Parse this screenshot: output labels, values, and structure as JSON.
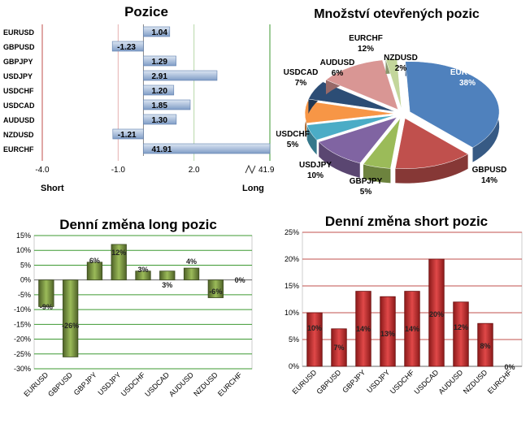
{
  "charts": {
    "colors": {
      "bar_blue_dark": "#7f9cc6",
      "bar_blue_light": "#dce6f2",
      "green_line": "#3d9a32",
      "red_line": "#c0504d",
      "green_bar_dark": "#4f6228",
      "green_bar_light": "#9bbb59",
      "red_bar_dark": "#8b1a1a",
      "red_bar_light": "#e04848"
    }
  },
  "chart_data": [
    {
      "type": "bar",
      "orientation": "horizontal",
      "title": "Pozice",
      "categories": [
        "EURUSD",
        "GBPUSD",
        "GBPJPY",
        "USDJPY",
        "USDCHF",
        "USDCAD",
        "AUDUSD",
        "NZDUSD",
        "EURCHF"
      ],
      "values": [
        1.04,
        -1.23,
        1.29,
        2.91,
        1.2,
        1.85,
        1.3,
        -1.21,
        41.91
      ],
      "value_labels": [
        "1.04",
        "-1.23",
        "1.29",
        "2.91",
        "1.20",
        "1.85",
        "1.30",
        "-1.21",
        "41.91"
      ],
      "x_ticks": [
        "-4.0",
        "-1.0",
        "2.0",
        "41.9"
      ],
      "xlim": [
        -4.0,
        5.0
      ],
      "axis_break_label": "41.9",
      "left_label": "Short",
      "right_label": "Long"
    },
    {
      "type": "pie",
      "title": "Množství otevřených pozic",
      "labels": [
        "EURUSD",
        "GBPUSD",
        "GBPJPY",
        "USDJPY",
        "USDCHF",
        "USDCAD",
        "AUDUSD",
        "EURCHF",
        "NZDUSD"
      ],
      "values": [
        38,
        14,
        5,
        10,
        5,
        7,
        6,
        12,
        2
      ],
      "percent_labels": [
        "38%",
        "14%",
        "5%",
        "10%",
        "5%",
        "7%",
        "6%",
        "12%",
        "2%"
      ],
      "colors": [
        "#4f81bd",
        "#c0504d",
        "#9bbb59",
        "#8064a2",
        "#4bacc6",
        "#f79646",
        "#2c4d75",
        "#d99694",
        "#c3d69b"
      ]
    },
    {
      "type": "bar",
      "title": "Denní změna long pozic",
      "categories": [
        "EURUSD",
        "GBPUSD",
        "GBPJPY",
        "USDJPY",
        "USDCHF",
        "USDCAD",
        "AUDUSD",
        "NZDUSD",
        "EURCHF"
      ],
      "values": [
        -9,
        -26,
        6,
        12,
        3,
        3,
        4,
        -6,
        0
      ],
      "value_labels": [
        "-9%",
        "-26%",
        "6%",
        "12%",
        "3%",
        "3%",
        "4%",
        "-6%",
        "0%"
      ],
      "y_ticks": [
        "15%",
        "10%",
        "5%",
        "0%",
        "-5%",
        "-10%",
        "-15%",
        "-20%",
        "-25%",
        "-30%"
      ],
      "ylim": [
        -30,
        15
      ]
    },
    {
      "type": "bar",
      "title": "Denní změna short pozic",
      "categories": [
        "EURUSD",
        "GBPUSD",
        "GBPJPY",
        "USDJPY",
        "USDCHF",
        "USDCAD",
        "AUDUSD",
        "NZDUSD",
        "EURCHF"
      ],
      "values": [
        10,
        7,
        14,
        13,
        14,
        20,
        12,
        8,
        0
      ],
      "value_labels": [
        "10%",
        "7%",
        "14%",
        "13%",
        "14%",
        "20%",
        "12%",
        "8%",
        "0%"
      ],
      "y_ticks": [
        "25%",
        "20%",
        "15%",
        "10%",
        "5%",
        "0%"
      ],
      "ylim": [
        0,
        25
      ]
    }
  ]
}
